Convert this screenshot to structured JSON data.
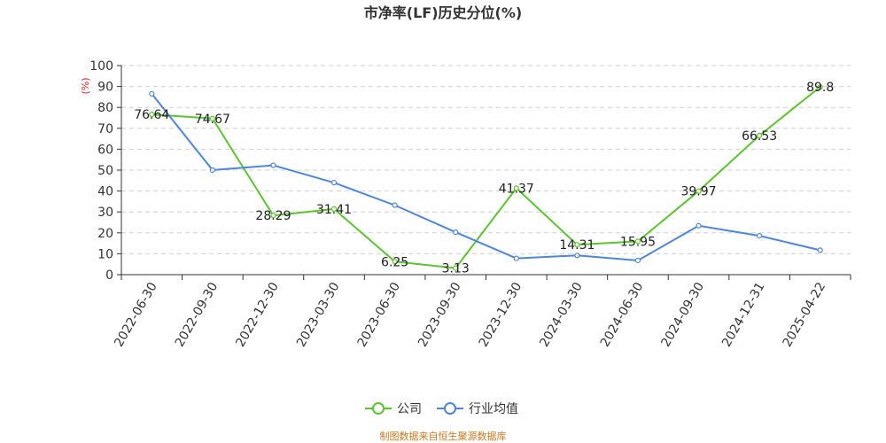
{
  "colors": {
    "company": "#5ac52f",
    "industry": "#4e86d9",
    "grid": "#d0d0d0",
    "axis": "#333333",
    "source": "#c8781e",
    "unit": "#e02020"
  },
  "source_text": "制图数据来自恒生聚源数据库",
  "chart_data": {
    "type": "line",
    "title": "市净率(LF)历史分位(%)",
    "ylabel": "(%)",
    "xlabel": "",
    "ylim": [
      0,
      100
    ],
    "yticks": [
      0,
      10,
      20,
      30,
      40,
      50,
      60,
      70,
      80,
      90,
      100
    ],
    "categories": [
      "2022-06-30",
      "2022-09-30",
      "2022-12-30",
      "2023-03-30",
      "2023-06-30",
      "2023-09-30",
      "2023-12-30",
      "2024-03-30",
      "2024-06-30",
      "2024-09-30",
      "2024-12-31",
      "2025-04-22"
    ],
    "grid": true,
    "legend_position": "bottom",
    "series": [
      {
        "name": "公司",
        "color": "#5ac52f",
        "show_labels": true,
        "values": [
          76.64,
          74.67,
          28.29,
          31.41,
          6.25,
          3.13,
          41.37,
          14.31,
          15.95,
          39.97,
          66.53,
          89.8
        ]
      },
      {
        "name": "行业均值",
        "color": "#4e86d9",
        "show_labels": false,
        "values": [
          86.5,
          50.0,
          52.3,
          44.0,
          33.2,
          20.3,
          7.8,
          9.2,
          6.8,
          23.4,
          18.6,
          11.7
        ]
      }
    ]
  }
}
